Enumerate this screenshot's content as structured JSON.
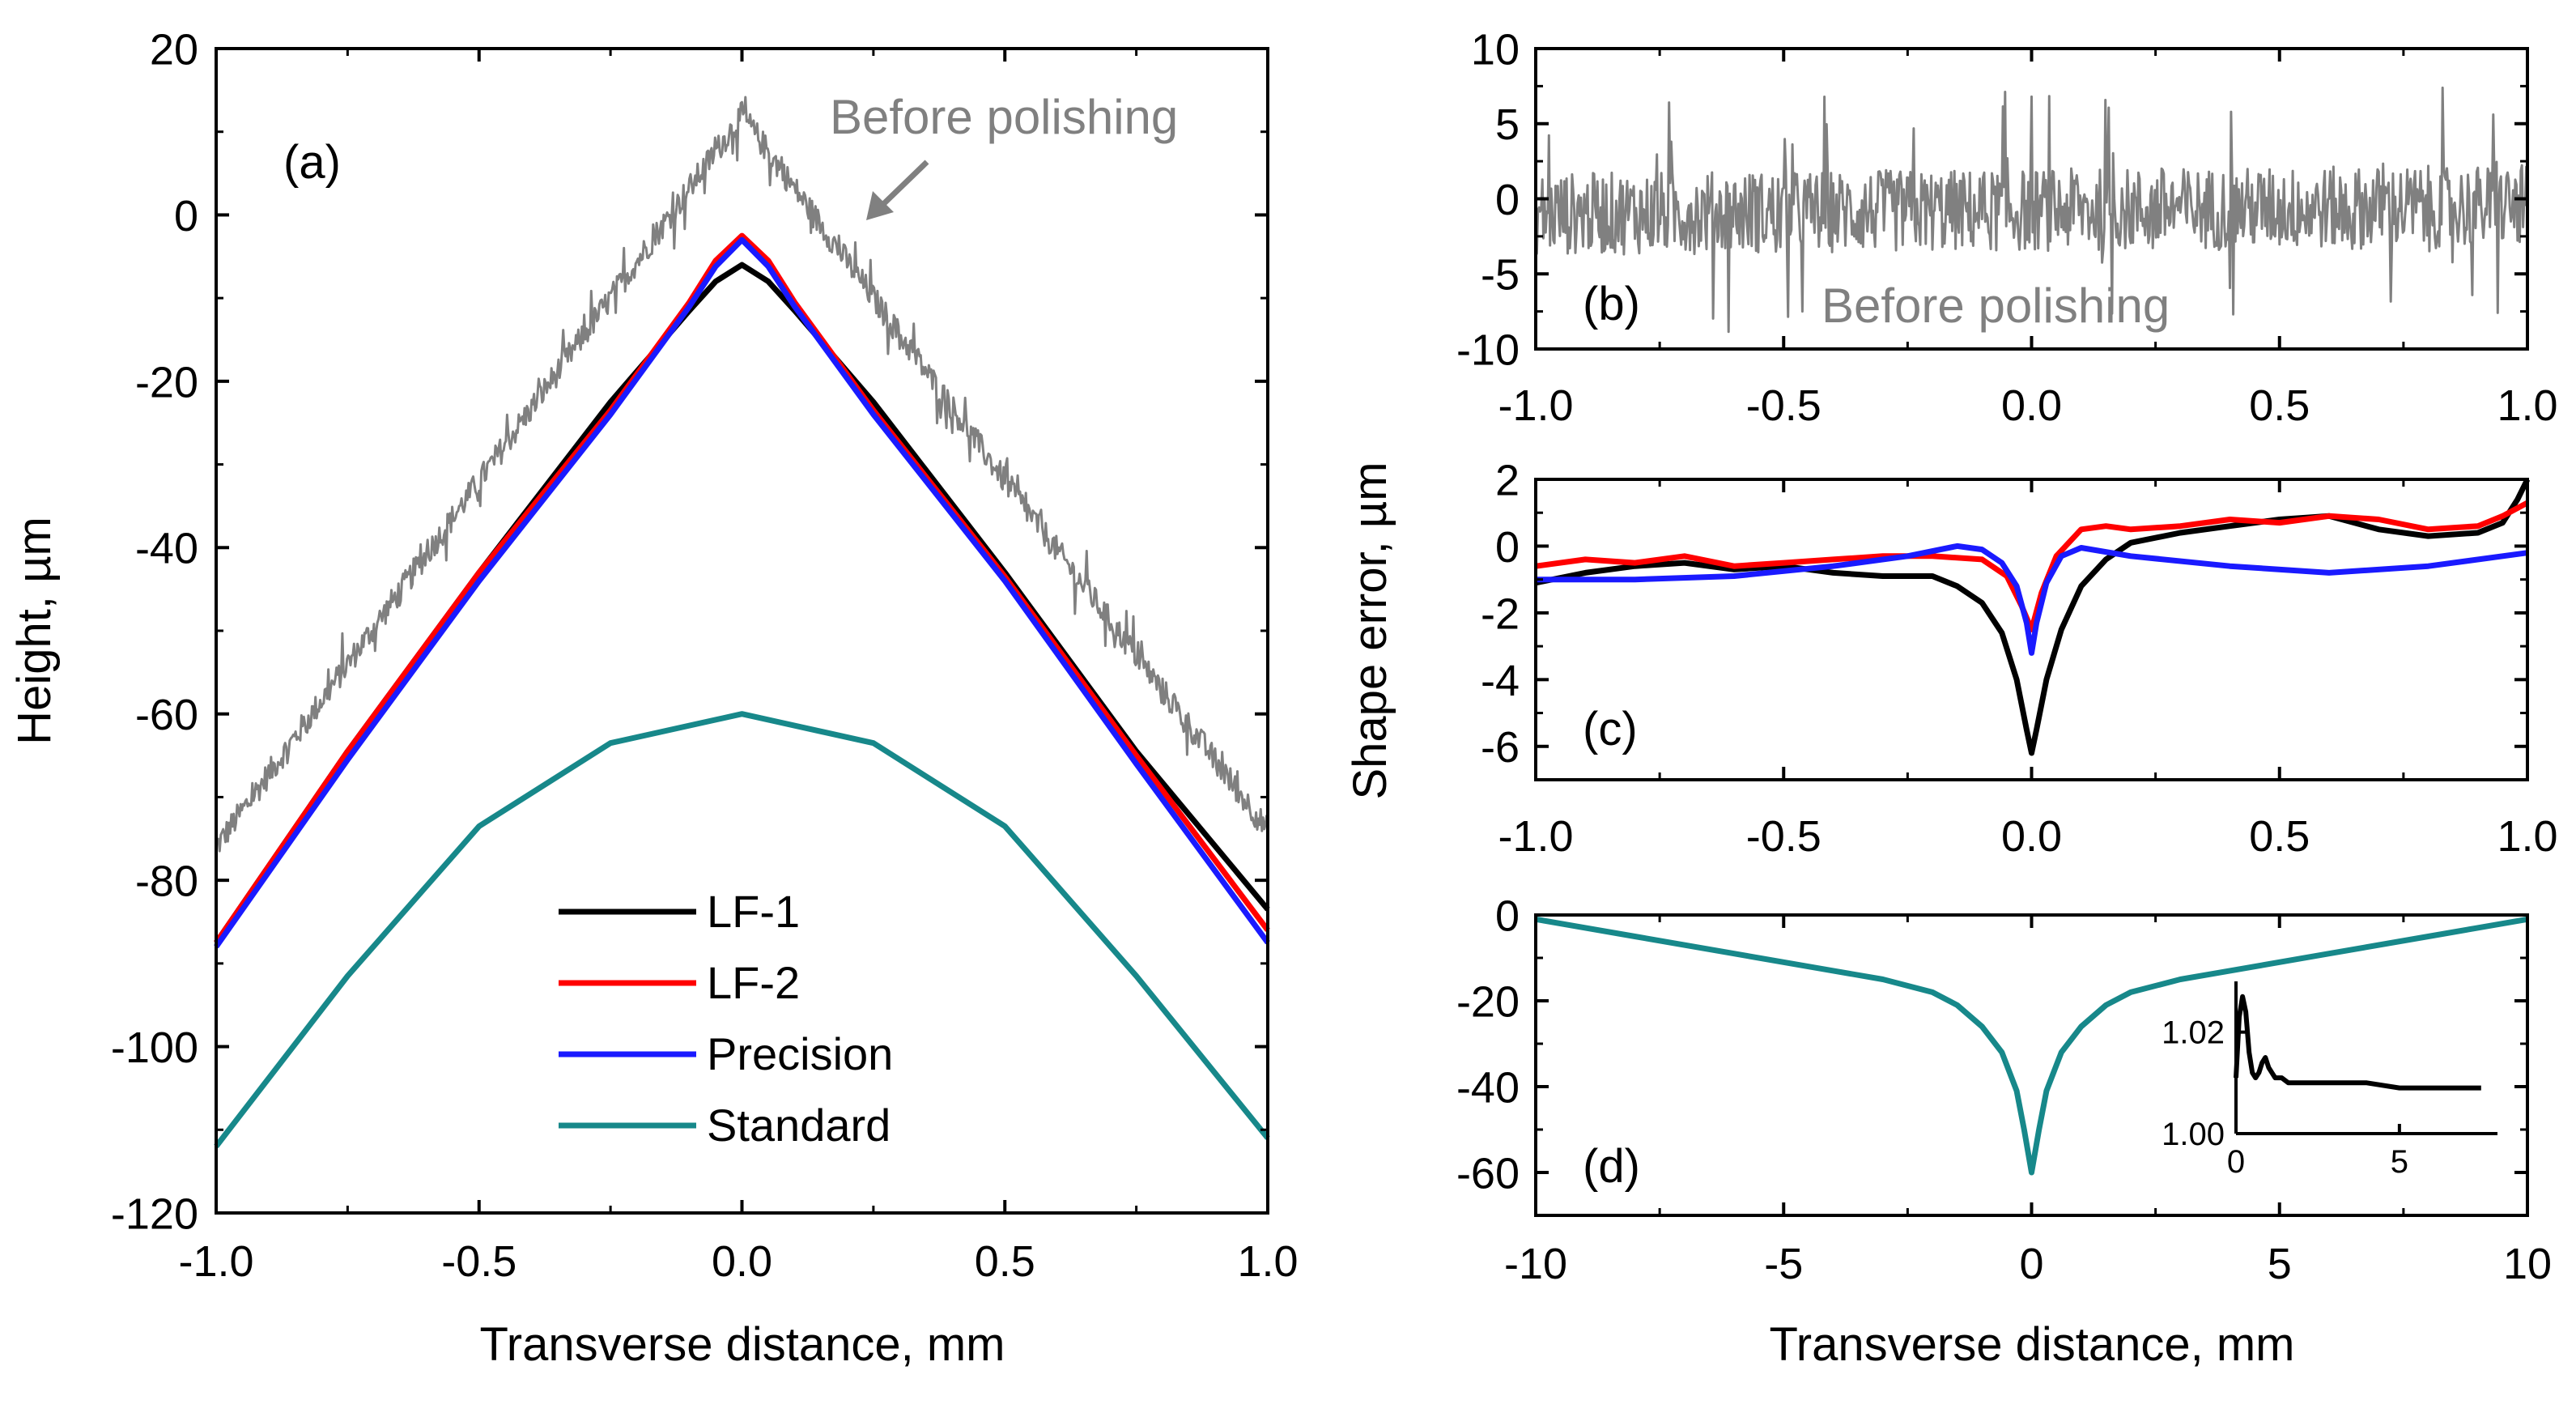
{
  "colors": {
    "lf1": "#000000",
    "lf2": "#ff0000",
    "precision": "#1a1aff",
    "standard": "#17888a",
    "before": "#808080",
    "axis": "#000000"
  },
  "chart_data": [
    {
      "panel": "a",
      "type": "line",
      "panel_label": "(a)",
      "xlabel": "Transverse distance, mm",
      "ylabel": "Height, µm",
      "xlim": [
        -1.0,
        1.0
      ],
      "ylim": [
        -120,
        20
      ],
      "xticks": [
        -1.0,
        -0.5,
        0.0,
        0.5,
        1.0
      ],
      "xtick_labels": [
        "-1.0",
        "-0.5",
        "0.0",
        "0.5",
        "1.0"
      ],
      "yticks": [
        20,
        0,
        -20,
        -40,
        -60,
        -80,
        -100,
        -120
      ],
      "ytick_labels": [
        "20",
        "0",
        "-20",
        "-40",
        "-60",
        "-80",
        "-100",
        "-120"
      ],
      "annotation": "Before polishing",
      "legend": {
        "placement": "bottom-center",
        "entries": [
          {
            "label": "LF-1",
            "color": "#000000"
          },
          {
            "label": "LF-2",
            "color": "#ff0000"
          },
          {
            "label": "Precision",
            "color": "#1a1aff"
          },
          {
            "label": "Standard",
            "color": "#17888a"
          }
        ]
      },
      "series": [
        {
          "name": "Before polishing",
          "color": "#808080",
          "noisy": true,
          "noise_amplitude": 3,
          "x": [
            -1.0,
            -0.5,
            0.0,
            0.5,
            1.0
          ],
          "y": [
            -76,
            -32,
            12,
            -32,
            -74
          ]
        },
        {
          "name": "LF-1",
          "color": "#000000",
          "x": [
            -1.0,
            -0.75,
            -0.5,
            -0.25,
            -0.1,
            -0.05,
            0.0,
            0.05,
            0.1,
            0.25,
            0.5,
            0.75,
            1.0
          ],
          "y": [
            -87.5,
            -64.5,
            -43,
            -22.5,
            -11.5,
            -8,
            -6,
            -8,
            -11.5,
            -22.5,
            -43,
            -64.5,
            -83.5
          ]
        },
        {
          "name": "LF-2",
          "color": "#ff0000",
          "x": [
            -1.0,
            -0.75,
            -0.5,
            -0.25,
            -0.1,
            -0.05,
            0.0,
            0.05,
            0.1,
            0.25,
            0.5,
            0.75,
            1.0
          ],
          "y": [
            -87.5,
            -64.5,
            -43,
            -23.5,
            -10.5,
            -5.5,
            -2.5,
            -5.5,
            -10.5,
            -23.5,
            -43.5,
            -65,
            -86
          ]
        },
        {
          "name": "Precision",
          "color": "#1a1aff",
          "x": [
            -1.0,
            -0.75,
            -0.5,
            -0.25,
            -0.1,
            -0.05,
            0.0,
            0.05,
            0.1,
            0.25,
            0.5,
            0.75,
            1.0
          ],
          "y": [
            -88,
            -65.5,
            -44,
            -24,
            -11,
            -6.2,
            -3,
            -6.2,
            -11,
            -24,
            -44,
            -66,
            -87.5
          ]
        },
        {
          "name": "Standard",
          "color": "#17888a",
          "x": [
            -1.0,
            -0.75,
            -0.5,
            -0.25,
            0.0,
            0.25,
            0.5,
            0.75,
            1.0
          ],
          "y": [
            -112,
            -91.5,
            -73.5,
            -63.5,
            -60,
            -63.5,
            -73.5,
            -91.5,
            -111
          ]
        }
      ]
    },
    {
      "panel": "b",
      "type": "line",
      "panel_label": "(b)",
      "xlim": [
        -1.0,
        1.0
      ],
      "ylim": [
        -10,
        10
      ],
      "xticks": [
        -1.0,
        -0.5,
        0.0,
        0.5,
        1.0
      ],
      "xtick_labels": [
        "-1.0",
        "-0.5",
        "0.0",
        "0.5",
        "1.0"
      ],
      "yticks": [
        10,
        5,
        0,
        -5,
        -10
      ],
      "ytick_labels": [
        "10",
        "5",
        "0",
        "-5",
        "-10"
      ],
      "annotation": "Before polishing",
      "series": [
        {
          "name": "Before polishing",
          "color": "#808080",
          "noisy": true,
          "noise_amplitude": 5,
          "x": [
            -1.0,
            1.0
          ],
          "y": [
            -1,
            -0.5
          ]
        }
      ]
    },
    {
      "panel": "c",
      "type": "line",
      "panel_label": "(c)",
      "ylabel": "Shape error, µm",
      "xlim": [
        -1.0,
        1.0
      ],
      "ylim": [
        -7,
        2
      ],
      "xticks": [
        -1.0,
        -0.5,
        0.0,
        0.5,
        1.0
      ],
      "xtick_labels": [
        "-1.0",
        "-0.5",
        "0.0",
        "0.5",
        "1.0"
      ],
      "yticks": [
        2,
        0,
        -2,
        -4,
        -6
      ],
      "ytick_labels": [
        "2",
        "0",
        "-2",
        "-4",
        "-6"
      ],
      "series": [
        {
          "name": "LF-1",
          "color": "#000000",
          "x": [
            -1.0,
            -0.9,
            -0.8,
            -0.7,
            -0.6,
            -0.5,
            -0.4,
            -0.3,
            -0.2,
            -0.15,
            -0.1,
            -0.06,
            -0.03,
            -0.01,
            0.0,
            0.01,
            0.03,
            0.06,
            0.1,
            0.15,
            0.2,
            0.3,
            0.4,
            0.5,
            0.6,
            0.7,
            0.8,
            0.9,
            0.95,
            0.98,
            1.0
          ],
          "y": [
            -1.1,
            -0.8,
            -0.6,
            -0.5,
            -0.7,
            -0.6,
            -0.8,
            -0.9,
            -0.9,
            -1.2,
            -1.7,
            -2.6,
            -4.0,
            -5.5,
            -6.2,
            -5.5,
            -4.0,
            -2.5,
            -1.2,
            -0.4,
            0.1,
            0.4,
            0.6,
            0.8,
            0.9,
            0.5,
            0.3,
            0.4,
            0.7,
            1.4,
            2.2
          ]
        },
        {
          "name": "LF-2",
          "color": "#ff0000",
          "x": [
            -1.0,
            -0.9,
            -0.8,
            -0.7,
            -0.6,
            -0.5,
            -0.4,
            -0.3,
            -0.2,
            -0.1,
            -0.05,
            -0.02,
            0.0,
            0.02,
            0.05,
            0.1,
            0.15,
            0.2,
            0.3,
            0.4,
            0.5,
            0.6,
            0.7,
            0.8,
            0.9,
            0.95,
            1.0
          ],
          "y": [
            -0.6,
            -0.4,
            -0.5,
            -0.3,
            -0.6,
            -0.5,
            -0.4,
            -0.3,
            -0.3,
            -0.4,
            -0.9,
            -1.8,
            -2.5,
            -1.4,
            -0.3,
            0.5,
            0.6,
            0.5,
            0.6,
            0.8,
            0.7,
            0.9,
            0.8,
            0.5,
            0.6,
            0.9,
            1.3
          ]
        },
        {
          "name": "Precision",
          "color": "#1a1aff",
          "x": [
            -1.0,
            -0.8,
            -0.6,
            -0.4,
            -0.25,
            -0.15,
            -0.1,
            -0.06,
            -0.03,
            -0.01,
            0.0,
            0.01,
            0.03,
            0.06,
            0.1,
            0.2,
            0.4,
            0.6,
            0.8,
            1.0
          ],
          "y": [
            -1.0,
            -1.0,
            -0.9,
            -0.6,
            -0.3,
            0.0,
            -0.1,
            -0.5,
            -1.2,
            -2.3,
            -3.2,
            -2.3,
            -1.1,
            -0.3,
            -0.05,
            -0.3,
            -0.6,
            -0.8,
            -0.6,
            -0.2
          ]
        }
      ]
    },
    {
      "panel": "d",
      "type": "line",
      "panel_label": "(d)",
      "xlabel": "Transverse distance, mm",
      "xlim": [
        -10,
        10
      ],
      "ylim": [
        -70,
        0
      ],
      "xticks": [
        -10,
        -5,
        0,
        5,
        10
      ],
      "xtick_labels": [
        "-10",
        "-5",
        "0",
        "5",
        "10"
      ],
      "yticks": [
        0,
        -20,
        -40,
        -60
      ],
      "ytick_labels": [
        "0",
        "-20",
        "-40",
        "-60"
      ],
      "series": [
        {
          "name": "Standard",
          "color": "#17888a",
          "x": [
            -10,
            -8,
            -6,
            -4,
            -3,
            -2,
            -1.5,
            -1,
            -0.6,
            -0.3,
            -0.15,
            0,
            0.15,
            0.3,
            0.6,
            1,
            1.5,
            2,
            3,
            4,
            6,
            8,
            10
          ],
          "y": [
            -1,
            -5,
            -9,
            -13,
            -15,
            -18,
            -21,
            -26,
            -32,
            -41,
            -50,
            -60,
            -50,
            -41,
            -32,
            -26,
            -21,
            -18,
            -15,
            -13,
            -9,
            -5,
            -1
          ]
        }
      ],
      "inset": {
        "xlim": [
          0,
          8
        ],
        "ylim": [
          1.0,
          1.03
        ],
        "xticks": [
          0,
          5
        ],
        "xtick_labels": [
          "0",
          "5"
        ],
        "yticks": [
          1.02,
          1.0
        ],
        "ytick_labels": [
          "1.02",
          "1.00"
        ],
        "series": [
          {
            "name": "inset",
            "color": "#000000",
            "x": [
              0,
              0.1,
              0.2,
              0.3,
              0.4,
              0.5,
              0.6,
              0.7,
              0.8,
              0.9,
              1.0,
              1.1,
              1.2,
              1.4,
              1.6,
              2.0,
              2.5,
              3,
              4,
              5,
              6,
              7,
              7.5
            ],
            "y": [
              1.011,
              1.023,
              1.027,
              1.024,
              1.016,
              1.012,
              1.011,
              1.012,
              1.014,
              1.015,
              1.013,
              1.012,
              1.011,
              1.011,
              1.01,
              1.01,
              1.01,
              1.01,
              1.01,
              1.009,
              1.009,
              1.009,
              1.009
            ]
          }
        ]
      }
    }
  ]
}
